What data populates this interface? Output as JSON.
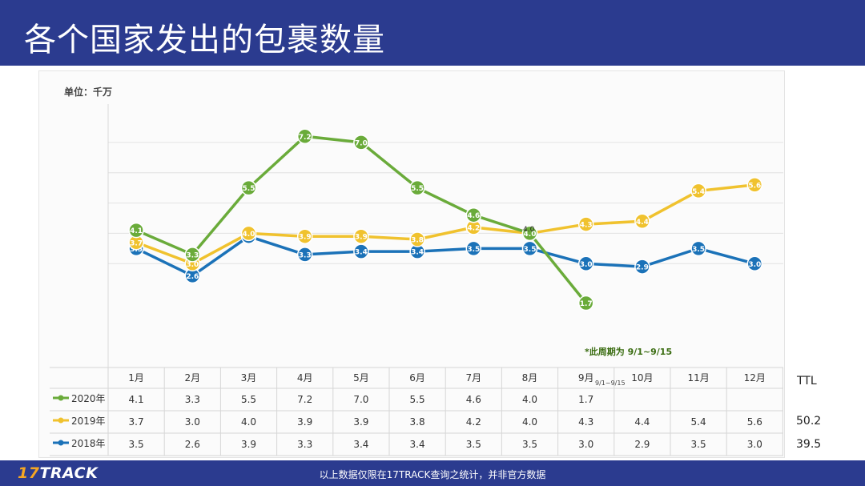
{
  "title": "各个国家发出的包裹数量",
  "unit_label": "单位：千万",
  "note": "*此周期为 9/1~9/15",
  "september_subnote": "9/1~9/15",
  "extra_point_label": "4.0",
  "ttl_header": "TTL",
  "ttl_values": [
    "50.2",
    "39.5"
  ],
  "footer_logo_num": "17",
  "footer_logo_text": "TRACK",
  "footer_note": "以上数据仅限在17TRACK查询之统计，并非官方数据",
  "chart_data": {
    "type": "line",
    "categories": [
      "1月",
      "2月",
      "3月",
      "4月",
      "5月",
      "6月",
      "7月",
      "8月",
      "9月",
      "10月",
      "11月",
      "12月"
    ],
    "series": [
      {
        "name": "2020年",
        "color": "#6aab3a",
        "values": [
          4.1,
          3.3,
          5.5,
          7.2,
          7.0,
          5.5,
          4.6,
          4.0,
          1.7,
          null,
          null,
          null
        ]
      },
      {
        "name": "2019年",
        "color": "#f0c22e",
        "values": [
          3.7,
          3.0,
          4.0,
          3.9,
          3.9,
          3.8,
          4.2,
          4.0,
          4.3,
          4.4,
          5.4,
          5.6
        ]
      },
      {
        "name": "2018年",
        "color": "#1b72b8",
        "values": [
          3.5,
          2.6,
          3.9,
          3.3,
          3.4,
          3.4,
          3.5,
          3.5,
          3.0,
          2.9,
          3.5,
          3.0
        ]
      }
    ],
    "ylim": [
      1,
      8
    ],
    "grid": true,
    "legend": "bottom-table"
  }
}
